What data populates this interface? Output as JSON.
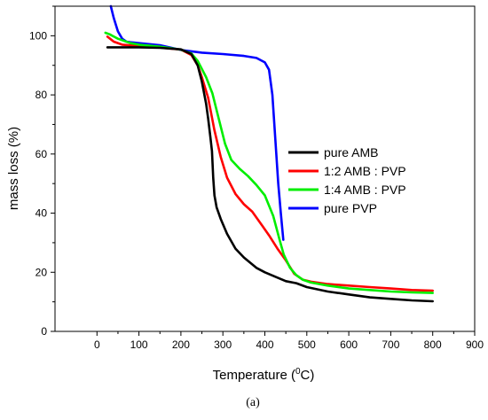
{
  "chart_data": {
    "type": "line",
    "title": "",
    "xlabel": "Temperature (",
    "xlabel_super": "0",
    "xlabel_suffix": "C)",
    "ylabel": "mass loss (%)",
    "caption": "(a)",
    "xlim": [
      -100,
      900
    ],
    "ylim": [
      0,
      110
    ],
    "xticks": [
      0,
      100,
      200,
      300,
      400,
      500,
      600,
      700,
      800,
      900
    ],
    "yticks": [
      0,
      20,
      40,
      60,
      80,
      100
    ],
    "grid": false,
    "legend_position": "center-right",
    "series": [
      {
        "name": "pure AMB",
        "color": "#000000",
        "points": [
          [
            25,
            96.1
          ],
          [
            50,
            96.1
          ],
          [
            100,
            96.1
          ],
          [
            150,
            95.9
          ],
          [
            200,
            95.4
          ],
          [
            225,
            93.8
          ],
          [
            240,
            90.0
          ],
          [
            250,
            84.5
          ],
          [
            260,
            77.0
          ],
          [
            265,
            72.0
          ],
          [
            270,
            66.0
          ],
          [
            274,
            61.0
          ],
          [
            277,
            52.0
          ],
          [
            280,
            46.0
          ],
          [
            285,
            42.0
          ],
          [
            295,
            38.0
          ],
          [
            310,
            33.0
          ],
          [
            330,
            28.0
          ],
          [
            350,
            25.0
          ],
          [
            380,
            21.5
          ],
          [
            400,
            20.0
          ],
          [
            425,
            18.5
          ],
          [
            450,
            17.0
          ],
          [
            475,
            16.3
          ],
          [
            500,
            15.0
          ],
          [
            550,
            13.5
          ],
          [
            600,
            12.5
          ],
          [
            650,
            11.5
          ],
          [
            700,
            11.0
          ],
          [
            750,
            10.5
          ],
          [
            800,
            10.2
          ]
        ]
      },
      {
        "name": "1:2 AMB : PVP",
        "color": "#ff0000",
        "points": [
          [
            25,
            99.7
          ],
          [
            40,
            98.0
          ],
          [
            60,
            97.0
          ],
          [
            100,
            96.5
          ],
          [
            150,
            96.0
          ],
          [
            200,
            95.3
          ],
          [
            225,
            93.5
          ],
          [
            240,
            90.0
          ],
          [
            250,
            86.0
          ],
          [
            265,
            79.0
          ],
          [
            280,
            68.0
          ],
          [
            295,
            59.0
          ],
          [
            310,
            52.0
          ],
          [
            330,
            46.5
          ],
          [
            350,
            43.0
          ],
          [
            370,
            40.5
          ],
          [
            390,
            36.5
          ],
          [
            410,
            32.5
          ],
          [
            430,
            28.0
          ],
          [
            450,
            24.0
          ],
          [
            470,
            19.5
          ],
          [
            490,
            17.5
          ],
          [
            510,
            16.8
          ],
          [
            550,
            16.0
          ],
          [
            600,
            15.5
          ],
          [
            650,
            15.0
          ],
          [
            700,
            14.5
          ],
          [
            750,
            14.0
          ],
          [
            800,
            13.8
          ]
        ]
      },
      {
        "name": "1:4 AMB : PVP",
        "color": "#00ee00",
        "points": [
          [
            20,
            101.0
          ],
          [
            30,
            100.5
          ],
          [
            50,
            99.0
          ],
          [
            80,
            97.5
          ],
          [
            100,
            97.0
          ],
          [
            150,
            96.3
          ],
          [
            200,
            95.3
          ],
          [
            225,
            94.0
          ],
          [
            240,
            91.5
          ],
          [
            260,
            86.0
          ],
          [
            275,
            80.5
          ],
          [
            290,
            72.0
          ],
          [
            305,
            63.5
          ],
          [
            320,
            58.0
          ],
          [
            340,
            55.0
          ],
          [
            360,
            52.5
          ],
          [
            380,
            49.5
          ],
          [
            400,
            46.0
          ],
          [
            420,
            39.0
          ],
          [
            435,
            31.0
          ],
          [
            445,
            26.0
          ],
          [
            460,
            21.5
          ],
          [
            475,
            19.0
          ],
          [
            490,
            17.5
          ],
          [
            510,
            16.5
          ],
          [
            550,
            15.5
          ],
          [
            600,
            14.5
          ],
          [
            650,
            14.0
          ],
          [
            700,
            13.5
          ],
          [
            750,
            13.2
          ],
          [
            800,
            13.0
          ]
        ]
      },
      {
        "name": "pure PVP",
        "color": "#0000ff",
        "points": [
          [
            33,
            110.0
          ],
          [
            40,
            106.0
          ],
          [
            50,
            101.5
          ],
          [
            60,
            99.0
          ],
          [
            70,
            98.0
          ],
          [
            80,
            97.8
          ],
          [
            100,
            97.5
          ],
          [
            150,
            96.8
          ],
          [
            200,
            95.2
          ],
          [
            250,
            94.3
          ],
          [
            300,
            93.8
          ],
          [
            350,
            93.2
          ],
          [
            380,
            92.5
          ],
          [
            400,
            91.0
          ],
          [
            410,
            88.5
          ],
          [
            418,
            80.0
          ],
          [
            425,
            65.0
          ],
          [
            432,
            50.0
          ],
          [
            438,
            40.0
          ],
          [
            444,
            31.0
          ]
        ]
      }
    ]
  }
}
